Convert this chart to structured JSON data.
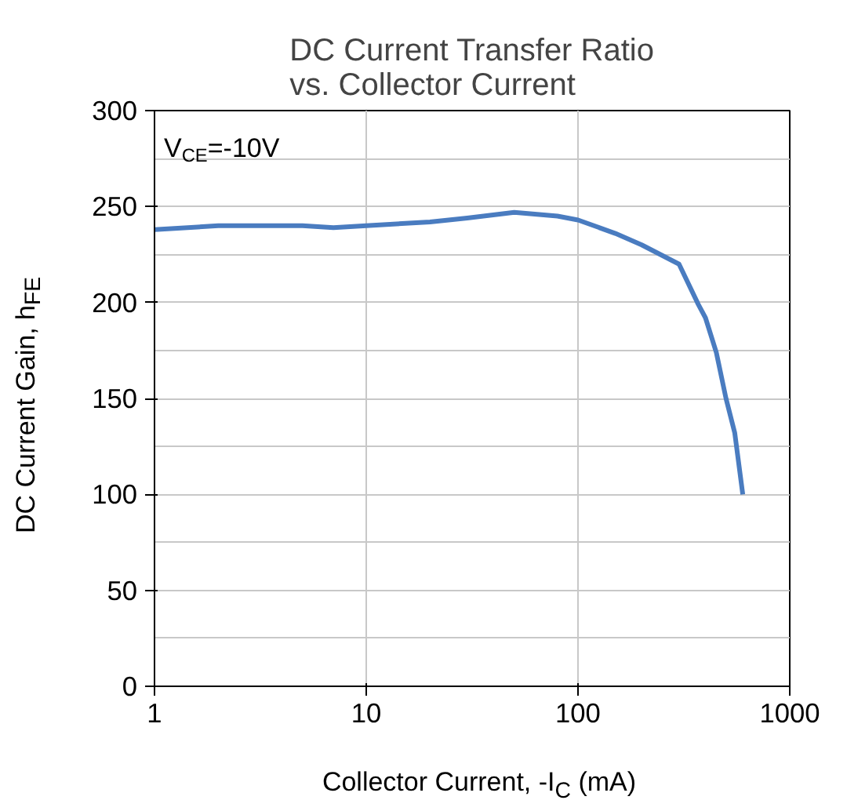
{
  "chart_data": {
    "type": "line",
    "title": "DC Current Transfer Ratio\nvs. Collector Current",
    "xlabel": "Collector Current, -I$_{C}$ (mA)",
    "ylabel": "DC Current Gain, h$_{FE}$",
    "annotations": [
      "V$_{CE}$=-10V"
    ],
    "log": "x",
    "grid": true,
    "xlim": [
      1,
      1000
    ],
    "xticks": [
      1,
      10,
      100,
      1000
    ],
    "ylim": [
      0,
      300
    ],
    "yticks": [
      0,
      50,
      100,
      150,
      200,
      250,
      300
    ],
    "series": [
      {
        "color": "#4a7cc0",
        "x": [
          1,
          2,
          5,
          7,
          10,
          20,
          30,
          50,
          80,
          100,
          150,
          200,
          300,
          370,
          400,
          450,
          500,
          550,
          600
        ],
        "values": [
          238,
          240,
          240,
          239,
          240,
          242,
          244,
          247,
          245,
          243,
          236,
          230,
          220,
          199,
          192,
          174,
          150,
          132,
          100
        ]
      }
    ]
  }
}
